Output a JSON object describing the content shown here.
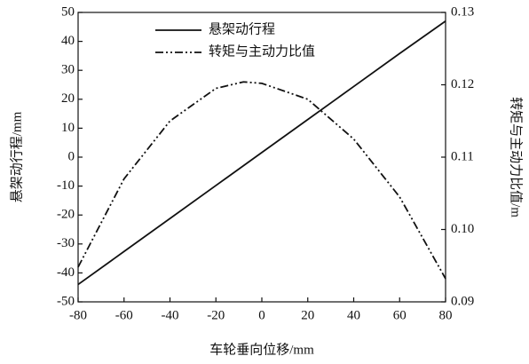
{
  "chart_data": {
    "type": "line",
    "xlabel": "车轮垂向位移/mm",
    "ylabel": "悬架动行程/mm",
    "y2label": "转矩与主动力比值/m",
    "xlim": [
      -80,
      80
    ],
    "xticks": [
      -80,
      -60,
      -40,
      -20,
      0,
      20,
      40,
      60,
      80
    ],
    "ylim": [
      -50,
      50
    ],
    "yticks": [
      -50,
      -40,
      -30,
      -20,
      -10,
      0,
      10,
      20,
      30,
      40,
      50
    ],
    "y2lim": [
      0.09,
      0.13
    ],
    "y2ticks": [
      0.09,
      {
        "value": 0.1,
        "label": "0.10"
      },
      0.11,
      0.12,
      0.13
    ],
    "legend": "upper center",
    "series": [
      {
        "name": "悬架动行程",
        "color": "#111111",
        "line_style": "solid",
        "x": [
          -80,
          -60,
          -40,
          -20,
          0,
          20,
          40,
          60,
          80
        ],
        "values": [
          -44,
          -32.6,
          -21.2,
          -9.8,
          1.6,
          13,
          24.4,
          35.8,
          47
        ]
      },
      {
        "name": "转矩与主动力比值",
        "color": "#111111",
        "line_style": "dashdotdot",
        "axis": "y2",
        "x": [
          -80,
          -60,
          -40,
          -20,
          -8,
          0,
          20,
          40,
          60,
          80
        ],
        "values": [
          0.0948,
          0.107,
          0.115,
          0.1195,
          0.1204,
          0.1202,
          0.118,
          0.1125,
          0.1045,
          0.0932
        ]
      }
    ]
  }
}
